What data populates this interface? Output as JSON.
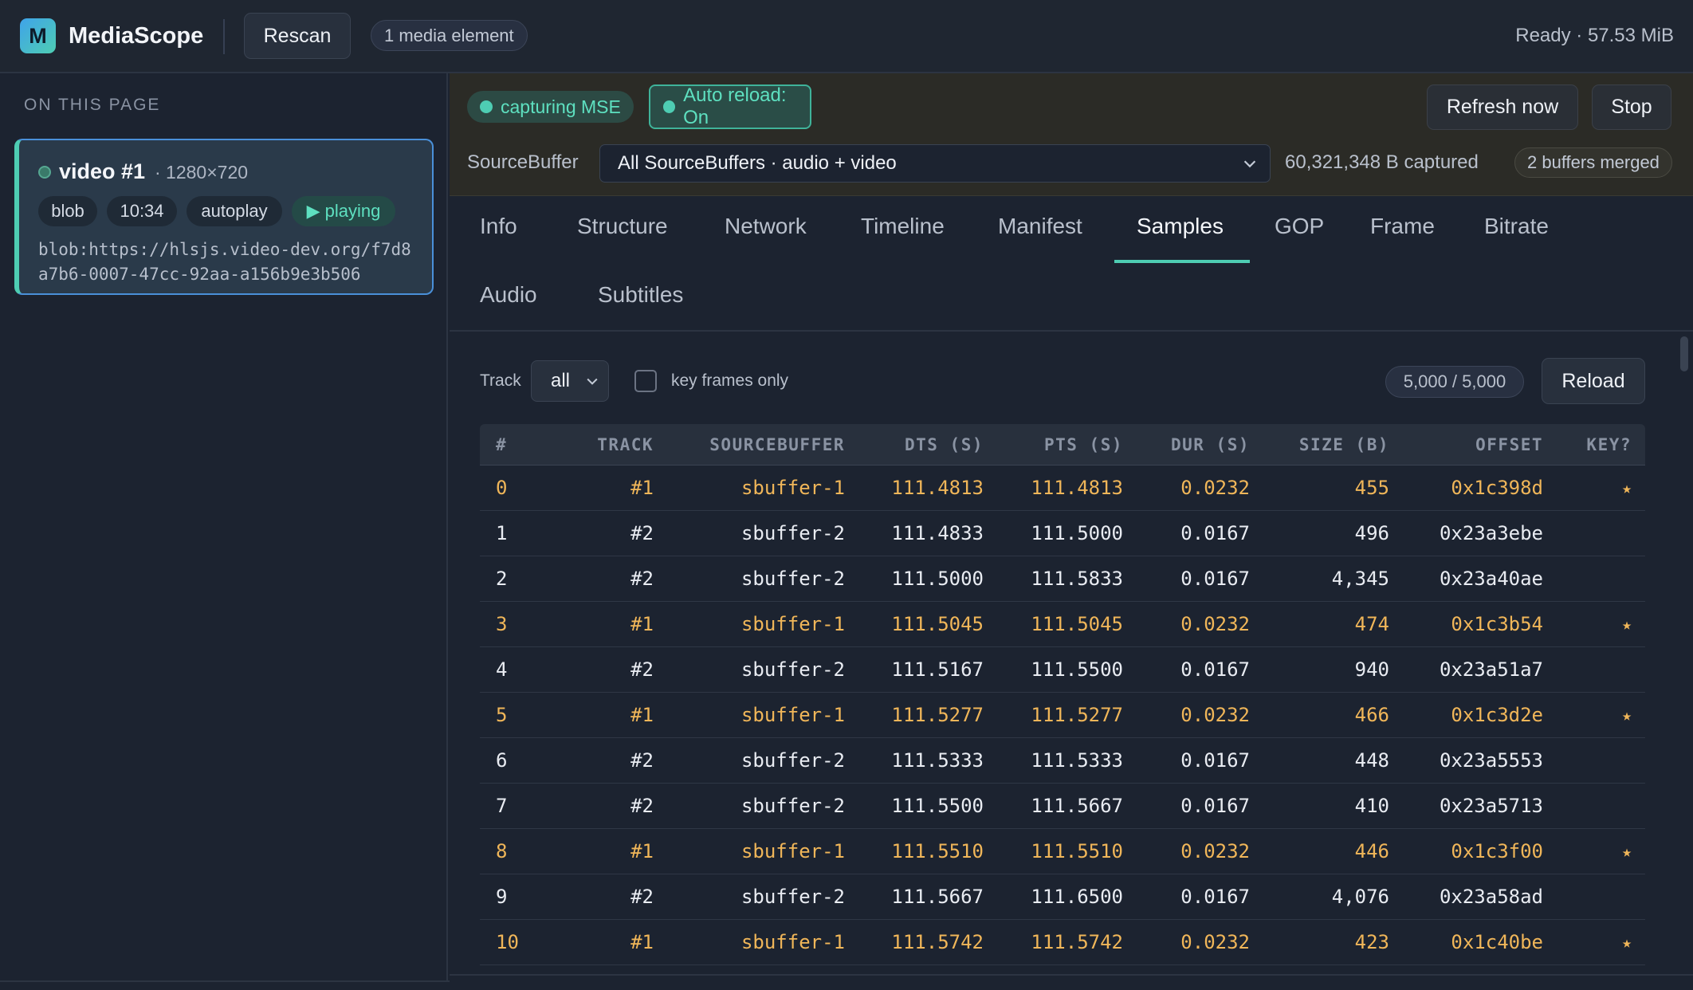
{
  "header": {
    "logo_letter": "M",
    "app_title": "MediaScope",
    "rescan_label": "Rescan",
    "media_count": "1 media element",
    "status": "Ready · 57.53 MiB"
  },
  "sidebar": {
    "heading": "ON THIS PAGE",
    "card": {
      "title": "video #1",
      "resolution": "· 1280×720",
      "tags": [
        "blob",
        "10:34",
        "autoplay"
      ],
      "state": "▶ playing",
      "url": "blob:https://hlsjs.video-dev.org/f7d8a7b6-0007-47cc-92aa-a156b9e3b506"
    }
  },
  "capture": {
    "capturing_label": "capturing MSE",
    "auto_reload_label": "Auto reload: On",
    "refresh_label": "Refresh now",
    "stop_label": "Stop",
    "sourcebuffer_label": "SourceBuffer",
    "sourcebuffer_value": "All SourceBuffers · audio + video",
    "captured": "60,321,348 B captured",
    "merged": "2 buffers merged"
  },
  "tabs": [
    "Info",
    "Structure",
    "Network",
    "Timeline",
    "Manifest",
    "Samples",
    "GOP",
    "Frame",
    "Bitrate",
    "Audio",
    "Subtitles"
  ],
  "active_tab": "Samples",
  "controls": {
    "track_label": "Track",
    "track_value": "all",
    "keyframes_label": "key frames only",
    "keyframes_checked": false,
    "count": "5,000 / 5,000",
    "reload_label": "Reload"
  },
  "table": {
    "headers": [
      "#",
      "TRACK",
      "SOURCEBUFFER",
      "DTS (S)",
      "PTS (S)",
      "DUR (S)",
      "SIZE (B)",
      "OFFSET",
      "KEY?"
    ],
    "rows": [
      [
        "0",
        "#1",
        "sbuffer-1",
        "111.4813",
        "111.4813",
        "0.0232",
        "455",
        "0x1c398d",
        "★"
      ],
      [
        "1",
        "#2",
        "sbuffer-2",
        "111.4833",
        "111.5000",
        "0.0167",
        "496",
        "0x23a3ebe",
        ""
      ],
      [
        "2",
        "#2",
        "sbuffer-2",
        "111.5000",
        "111.5833",
        "0.0167",
        "4,345",
        "0x23a40ae",
        ""
      ],
      [
        "3",
        "#1",
        "sbuffer-1",
        "111.5045",
        "111.5045",
        "0.0232",
        "474",
        "0x1c3b54",
        "★"
      ],
      [
        "4",
        "#2",
        "sbuffer-2",
        "111.5167",
        "111.5500",
        "0.0167",
        "940",
        "0x23a51a7",
        ""
      ],
      [
        "5",
        "#1",
        "sbuffer-1",
        "111.5277",
        "111.5277",
        "0.0232",
        "466",
        "0x1c3d2e",
        "★"
      ],
      [
        "6",
        "#2",
        "sbuffer-2",
        "111.5333",
        "111.5333",
        "0.0167",
        "448",
        "0x23a5553",
        ""
      ],
      [
        "7",
        "#2",
        "sbuffer-2",
        "111.5500",
        "111.5667",
        "0.0167",
        "410",
        "0x23a5713",
        ""
      ],
      [
        "8",
        "#1",
        "sbuffer-1",
        "111.5510",
        "111.5510",
        "0.0232",
        "446",
        "0x1c3f00",
        "★"
      ],
      [
        "9",
        "#2",
        "sbuffer-2",
        "111.5667",
        "111.6500",
        "0.0167",
        "4,076",
        "0x23a58ad",
        ""
      ],
      [
        "10",
        "#1",
        "sbuffer-1",
        "111.5742",
        "111.5742",
        "0.0232",
        "423",
        "0x1c40be",
        "★"
      ]
    ]
  },
  "colors": {
    "accent": "#4ecdb3",
    "key_row": "#f0b659",
    "selection_border": "#4a90d9"
  }
}
